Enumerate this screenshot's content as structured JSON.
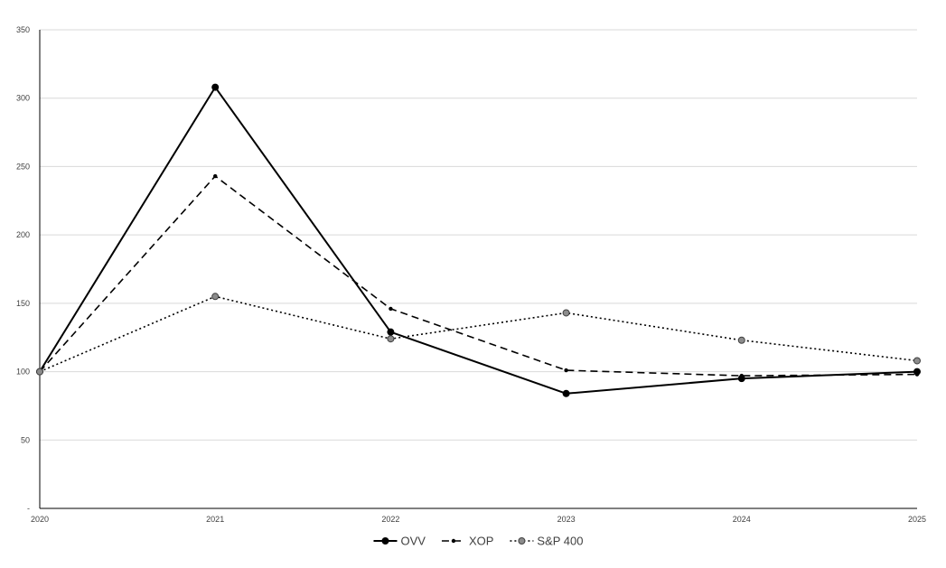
{
  "chart_data": {
    "type": "line",
    "title": "",
    "xlabel": "",
    "ylabel": "",
    "x": [
      "2020",
      "2021",
      "2022",
      "2023",
      "2024",
      "2025"
    ],
    "ylim": [
      0,
      350
    ],
    "yticks": [
      0,
      50,
      100,
      150,
      200,
      250,
      300,
      350
    ],
    "ytick_labels": [
      "-",
      "50",
      "100",
      "150",
      "200",
      "250",
      "300",
      "350"
    ],
    "grid": true,
    "legend_position": "bottom",
    "series": [
      {
        "name": "OVV",
        "values": [
          100,
          308,
          129,
          84,
          95,
          100
        ],
        "line_style": "solid",
        "marker": "circle-black",
        "color": "#000000"
      },
      {
        "name": "XOP",
        "values": [
          100,
          243,
          146,
          101,
          97,
          98
        ],
        "line_style": "dashed",
        "marker": "small-dot-black",
        "color": "#000000"
      },
      {
        "name": "S&P 400",
        "values": [
          100,
          155,
          124,
          143,
          123,
          108
        ],
        "line_style": "dotted",
        "marker": "circle-gray",
        "color": "#000000"
      }
    ]
  }
}
